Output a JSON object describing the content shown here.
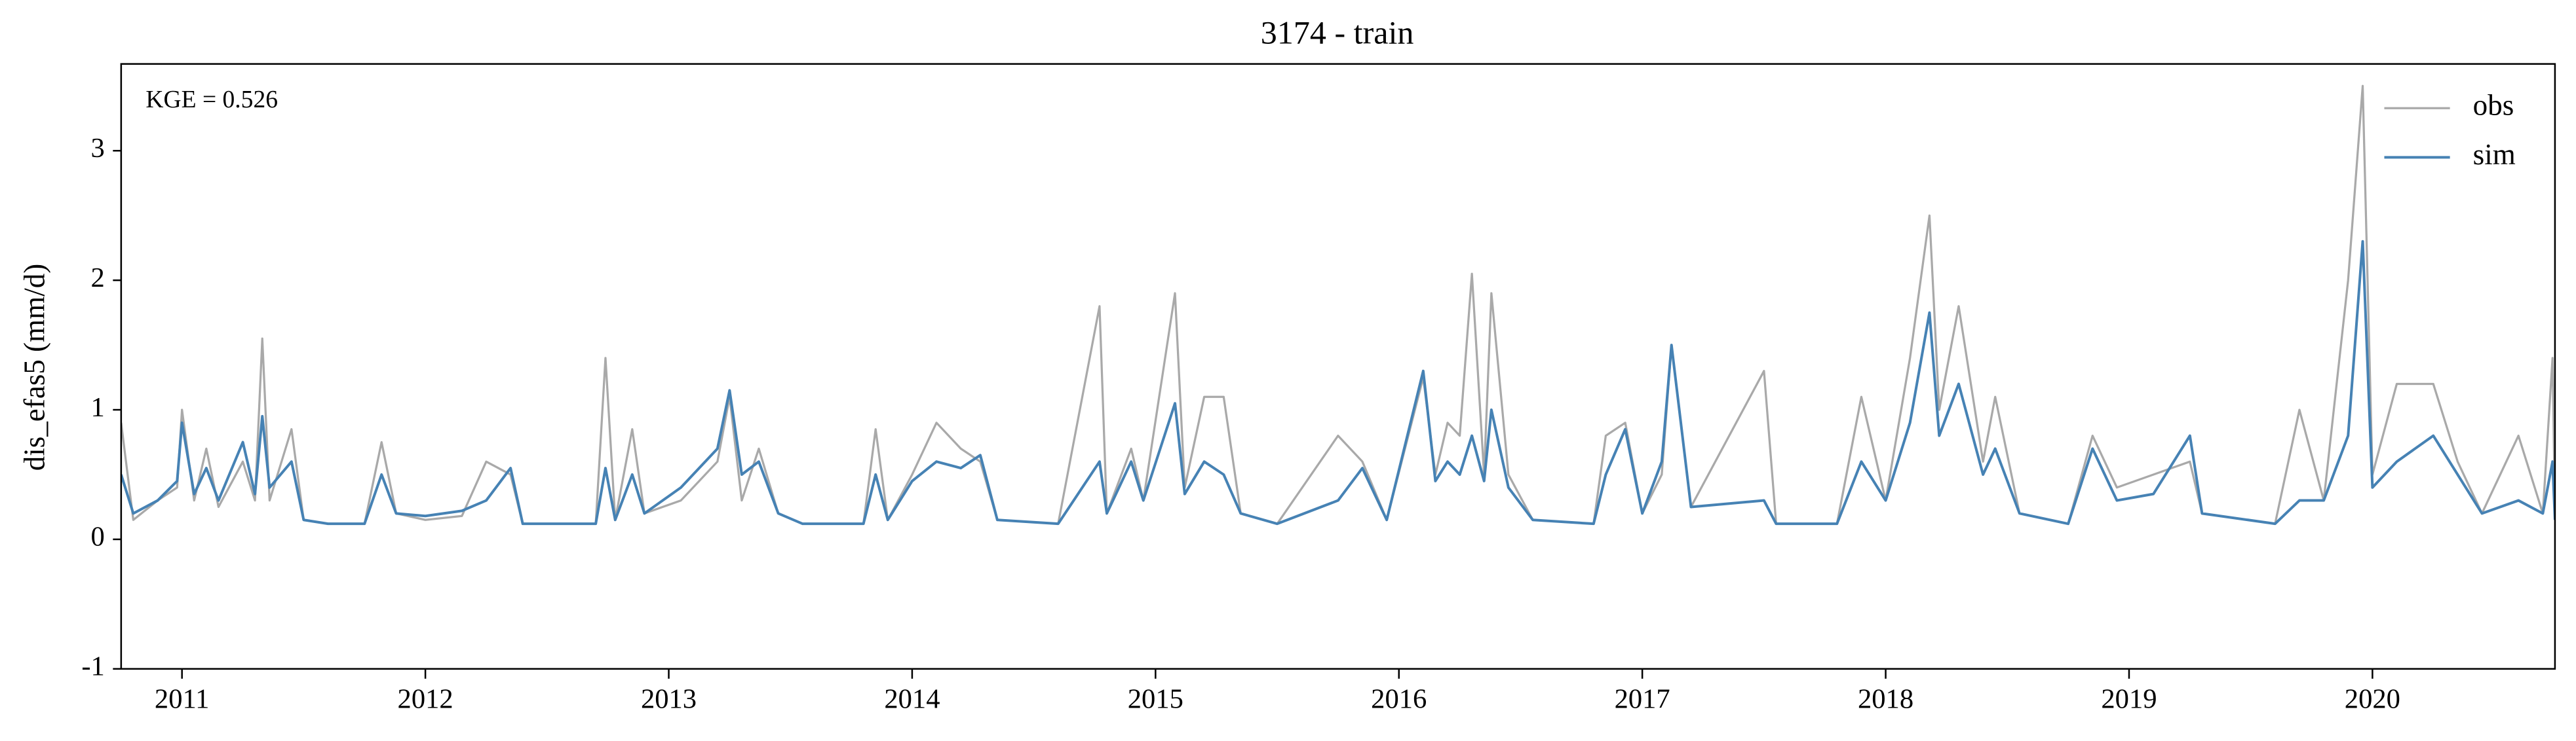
{
  "chart_data": {
    "type": "line",
    "title": "3174 - train",
    "ylabel": "dis_efas5 (mm/d)",
    "annotation": "KGE = 0.526",
    "legend": "upper right",
    "xlim": [
      2010.75,
      2020.75
    ],
    "xticks": [
      2011,
      2012,
      2013,
      2014,
      2015,
      2016,
      2017,
      2018,
      2019,
      2020
    ],
    "ylim": [
      -1,
      3.67
    ],
    "yticks": [
      -1,
      0,
      1,
      2,
      3
    ],
    "x": [
      2010.75,
      2010.8,
      2010.9,
      2010.98,
      2011.0,
      2011.05,
      2011.1,
      2011.15,
      2011.25,
      2011.3,
      2011.33,
      2011.36,
      2011.45,
      2011.5,
      2011.6,
      2011.75,
      2011.82,
      2011.88,
      2012.0,
      2012.15,
      2012.25,
      2012.35,
      2012.4,
      2012.7,
      2012.74,
      2012.78,
      2012.85,
      2012.9,
      2013.05,
      2013.2,
      2013.25,
      2013.3,
      2013.37,
      2013.45,
      2013.55,
      2013.8,
      2013.85,
      2013.9,
      2014.0,
      2014.1,
      2014.2,
      2014.28,
      2014.35,
      2014.6,
      2014.77,
      2014.8,
      2014.9,
      2014.95,
      2015.08,
      2015.12,
      2015.2,
      2015.28,
      2015.35,
      2015.5,
      2015.75,
      2015.85,
      2015.95,
      2016.1,
      2016.15,
      2016.2,
      2016.25,
      2016.3,
      2016.35,
      2016.38,
      2016.45,
      2016.55,
      2016.8,
      2016.85,
      2016.93,
      2017.0,
      2017.08,
      2017.12,
      2017.2,
      2017.5,
      2017.55,
      2017.8,
      2017.9,
      2018.0,
      2018.1,
      2018.18,
      2018.22,
      2018.3,
      2018.4,
      2018.45,
      2018.55,
      2018.75,
      2018.85,
      2018.95,
      2019.1,
      2019.25,
      2019.3,
      2019.6,
      2019.7,
      2019.8,
      2019.9,
      2019.96,
      2020.0,
      2020.1,
      2020.25,
      2020.35,
      2020.45,
      2020.6,
      2020.7,
      2020.74,
      2020.75
    ],
    "series": [
      {
        "name": "obs",
        "color": "#a9a9a9",
        "width": 1.3,
        "values": [
          0.9,
          0.15,
          0.3,
          0.4,
          1.0,
          0.3,
          0.7,
          0.25,
          0.6,
          0.3,
          1.55,
          0.3,
          0.85,
          0.15,
          0.12,
          0.12,
          0.75,
          0.2,
          0.15,
          0.18,
          0.6,
          0.5,
          0.12,
          0.12,
          1.4,
          0.15,
          0.85,
          0.2,
          0.3,
          0.6,
          1.1,
          0.3,
          0.7,
          0.2,
          0.12,
          0.12,
          0.85,
          0.15,
          0.5,
          0.9,
          0.7,
          0.6,
          0.15,
          0.12,
          1.8,
          0.2,
          0.7,
          0.3,
          1.9,
          0.4,
          1.1,
          1.1,
          0.2,
          0.12,
          0.8,
          0.6,
          0.15,
          1.25,
          0.5,
          0.9,
          0.8,
          2.05,
          0.5,
          1.9,
          0.5,
          0.15,
          0.12,
          0.8,
          0.9,
          0.2,
          0.5,
          1.5,
          0.25,
          1.3,
          0.12,
          0.12,
          1.1,
          0.3,
          1.4,
          2.5,
          1.0,
          1.8,
          0.6,
          1.1,
          0.2,
          0.12,
          0.8,
          0.4,
          0.5,
          0.6,
          0.2,
          0.12,
          1.0,
          0.3,
          2.0,
          3.5,
          0.5,
          1.2,
          1.2,
          0.6,
          0.2,
          0.8,
          0.2,
          1.4,
          0.2
        ]
      },
      {
        "name": "sim",
        "color": "#4682b4",
        "width": 1.6,
        "values": [
          0.5,
          0.2,
          0.3,
          0.45,
          0.9,
          0.35,
          0.55,
          0.3,
          0.75,
          0.35,
          0.95,
          0.4,
          0.6,
          0.15,
          0.12,
          0.12,
          0.5,
          0.2,
          0.18,
          0.22,
          0.3,
          0.55,
          0.12,
          0.12,
          0.55,
          0.15,
          0.5,
          0.2,
          0.4,
          0.7,
          1.15,
          0.5,
          0.6,
          0.2,
          0.12,
          0.12,
          0.5,
          0.15,
          0.45,
          0.6,
          0.55,
          0.65,
          0.15,
          0.12,
          0.6,
          0.2,
          0.6,
          0.3,
          1.05,
          0.35,
          0.6,
          0.5,
          0.2,
          0.12,
          0.3,
          0.55,
          0.15,
          1.3,
          0.45,
          0.6,
          0.5,
          0.8,
          0.45,
          1.0,
          0.4,
          0.15,
          0.12,
          0.5,
          0.85,
          0.2,
          0.6,
          1.5,
          0.25,
          0.3,
          0.12,
          0.12,
          0.6,
          0.3,
          0.9,
          1.75,
          0.8,
          1.2,
          0.5,
          0.7,
          0.2,
          0.12,
          0.7,
          0.3,
          0.35,
          0.8,
          0.2,
          0.12,
          0.3,
          0.3,
          0.8,
          2.3,
          0.4,
          0.6,
          0.8,
          0.5,
          0.2,
          0.3,
          0.2,
          0.6,
          0.15
        ]
      }
    ]
  }
}
